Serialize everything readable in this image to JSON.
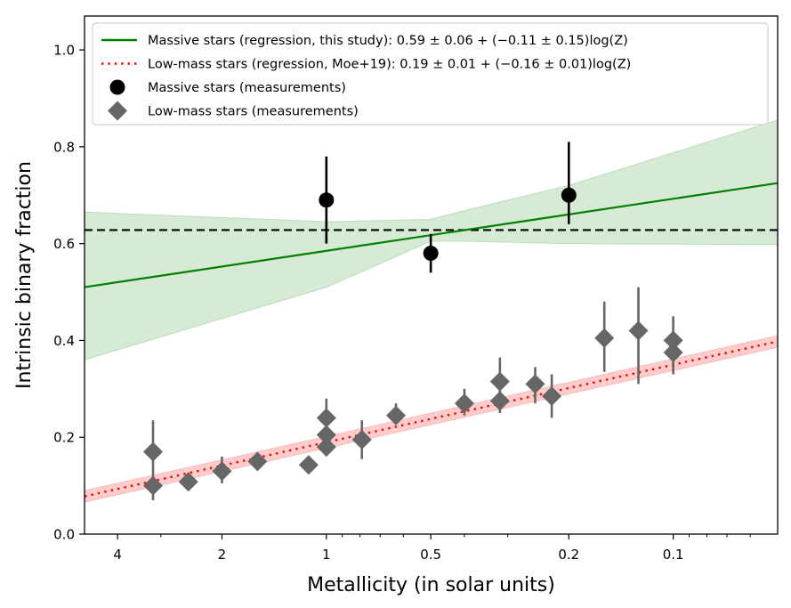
{
  "chart_data": {
    "type": "scatter",
    "title": "",
    "xlabel": "Metallicity (in solar units)",
    "ylabel": "Intrinsic binary fraction",
    "xscale": "log",
    "x_reversed": true,
    "xlim": [
      4.98,
      0.05
    ],
    "ylim": [
      0.0,
      1.07
    ],
    "xticks": [
      {
        "value": 4,
        "label": "4"
      },
      {
        "value": 2,
        "label": "2"
      },
      {
        "value": 1,
        "label": "1"
      },
      {
        "value": 0.5,
        "label": "0.5"
      },
      {
        "value": 0.2,
        "label": "0.2"
      },
      {
        "value": 0.1,
        "label": "0.1"
      }
    ],
    "xminor": [
      3,
      0.9,
      0.8,
      0.7,
      0.6,
      0.4,
      0.3,
      0.09,
      0.08,
      0.07,
      0.06
    ],
    "yticks": [
      {
        "value": 0.0,
        "label": "0.0"
      },
      {
        "value": 0.2,
        "label": "0.2"
      },
      {
        "value": 0.4,
        "label": "0.4"
      },
      {
        "value": 0.6,
        "label": "0.6"
      },
      {
        "value": 0.8,
        "label": "0.8"
      },
      {
        "value": 1.0,
        "label": "1.0"
      }
    ],
    "grid": false,
    "legend_position": "top",
    "legend": [
      {
        "label": "Massive stars (regression, this study): 0.59 ± 0.06 + (−0.11 ± 0.15)log(Z)",
        "style": "solid-line",
        "color": "#008000"
      },
      {
        "label": "Low-mass stars (regression, Moe+19): 0.19 ± 0.01 + (−0.16 ± 0.01)log(Z)",
        "style": "dotted-line",
        "color": "#ff0000"
      },
      {
        "label": "Massive stars (measurements)",
        "style": "circle",
        "color": "#000000"
      },
      {
        "label": "Low-mass stars (measurements)",
        "style": "diamond",
        "color": "#666666"
      }
    ],
    "reference_line": {
      "y": 0.628,
      "style": "dashed",
      "color": "#000000"
    },
    "series": [
      {
        "name": "Massive stars (regression, this study)",
        "kind": "line",
        "color": "#008000",
        "points": [
          {
            "x": 4.98,
            "y": 0.51
          },
          {
            "x": 0.05,
            "y": 0.725
          }
        ],
        "band_color": "#d6ead6",
        "band": [
          {
            "x": 4.98,
            "lo": 0.36,
            "hi": 0.665
          },
          {
            "x": 1.0,
            "lo": 0.51,
            "hi": 0.645
          },
          {
            "x": 0.5,
            "lo": 0.605,
            "hi": 0.65
          },
          {
            "x": 0.4,
            "lo": 0.605,
            "hi": 0.668
          },
          {
            "x": 0.2,
            "lo": 0.6,
            "hi": 0.72
          },
          {
            "x": 0.05,
            "lo": 0.598,
            "hi": 0.855
          }
        ]
      },
      {
        "name": "Low-mass stars (regression, Moe+19)",
        "kind": "line",
        "color": "#ff0000",
        "points": [
          {
            "x": 4.98,
            "y": 0.078
          },
          {
            "x": 0.05,
            "y": 0.398
          }
        ],
        "band_color": "#ffcccc",
        "band_halfwidth": 0.012
      },
      {
        "name": "Massive stars (measurements)",
        "kind": "errorbar",
        "marker": "circle",
        "color": "#000000",
        "points": [
          {
            "x": 1.0,
            "y": 0.69,
            "ylo": 0.6,
            "yhi": 0.78
          },
          {
            "x": 0.5,
            "y": 0.58,
            "ylo": 0.54,
            "yhi": 0.62
          },
          {
            "x": 0.2,
            "y": 0.7,
            "ylo": 0.64,
            "yhi": 0.81
          }
        ]
      },
      {
        "name": "Low-mass stars (measurements)",
        "kind": "errorbar",
        "marker": "diamond",
        "color": "#666666",
        "points": [
          {
            "x": 3.16,
            "y": 0.1,
            "ylo": 0.07,
            "yhi": 0.135
          },
          {
            "x": 3.16,
            "y": 0.17,
            "ylo": 0.135,
            "yhi": 0.235
          },
          {
            "x": 2.5,
            "y": 0.108,
            "ylo": 0.09,
            "yhi": 0.125
          },
          {
            "x": 2.0,
            "y": 0.13,
            "ylo": 0.105,
            "yhi": 0.16
          },
          {
            "x": 1.58,
            "y": 0.15,
            "ylo": 0.15,
            "yhi": 0.15
          },
          {
            "x": 1.125,
            "y": 0.143,
            "ylo": 0.143,
            "yhi": 0.143
          },
          {
            "x": 1.0,
            "y": 0.18,
            "ylo": 0.18,
            "yhi": 0.18
          },
          {
            "x": 1.0,
            "y": 0.205,
            "ylo": 0.205,
            "yhi": 0.205
          },
          {
            "x": 1.0,
            "y": 0.24,
            "ylo": 0.2,
            "yhi": 0.28
          },
          {
            "x": 0.79,
            "y": 0.195,
            "ylo": 0.155,
            "yhi": 0.235
          },
          {
            "x": 0.63,
            "y": 0.245,
            "ylo": 0.235,
            "yhi": 0.27
          },
          {
            "x": 0.4,
            "y": 0.27,
            "ylo": 0.245,
            "yhi": 0.3
          },
          {
            "x": 0.316,
            "y": 0.275,
            "ylo": 0.25,
            "yhi": 0.3
          },
          {
            "x": 0.316,
            "y": 0.315,
            "ylo": 0.28,
            "yhi": 0.365
          },
          {
            "x": 0.25,
            "y": 0.31,
            "ylo": 0.27,
            "yhi": 0.345
          },
          {
            "x": 0.224,
            "y": 0.285,
            "ylo": 0.24,
            "yhi": 0.33
          },
          {
            "x": 0.158,
            "y": 0.405,
            "ylo": 0.335,
            "yhi": 0.48
          },
          {
            "x": 0.126,
            "y": 0.42,
            "ylo": 0.31,
            "yhi": 0.51
          },
          {
            "x": 0.1,
            "y": 0.375,
            "ylo": 0.33,
            "yhi": 0.4
          },
          {
            "x": 0.1,
            "y": 0.4,
            "ylo": 0.37,
            "yhi": 0.45
          }
        ]
      }
    ]
  }
}
